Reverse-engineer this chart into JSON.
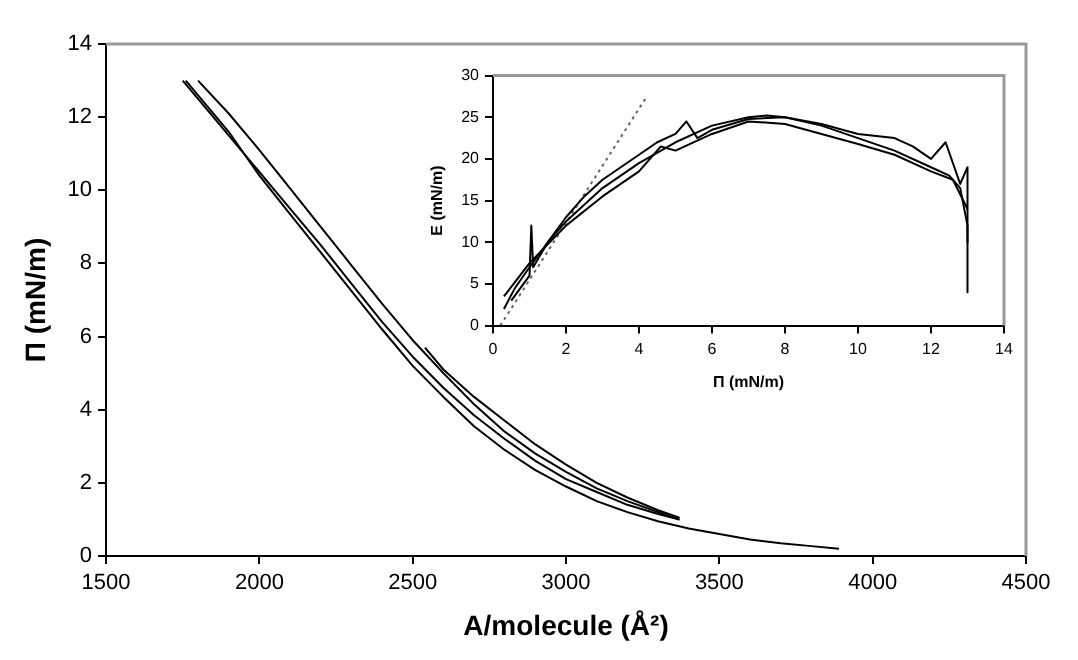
{
  "chart_data": [
    {
      "type": "line",
      "xlabel": "A/molecule (Å²)",
      "ylabel": "Π (mN/m)",
      "xlim": [
        1500,
        4500
      ],
      "xticks": [
        1500,
        2000,
        2500,
        3000,
        3500,
        4000,
        4500
      ],
      "ylim": [
        0,
        14
      ],
      "yticks": [
        0,
        2,
        4,
        6,
        8,
        10,
        12,
        14
      ],
      "grid": false,
      "legend": false,
      "marker": "none",
      "series": [
        {
          "color": "#000000",
          "x": [
            1800,
            1900,
            2000,
            2100,
            2200,
            2300,
            2400,
            2500,
            2600,
            2700,
            2800,
            2900,
            3000,
            3100,
            3200,
            3300,
            3370
          ],
          "values": [
            13,
            12.1,
            11.1,
            10.05,
            9.0,
            7.95,
            6.9,
            5.9,
            5.0,
            4.15,
            3.4,
            2.8,
            2.3,
            1.85,
            1.5,
            1.2,
            1.0
          ]
        },
        {
          "color": "#000000",
          "x": [
            1750,
            1850,
            2000,
            2100,
            2200,
            2300,
            2400,
            2500,
            2600,
            2700,
            2800,
            2900,
            3000,
            3100,
            3200,
            3300,
            3370
          ],
          "values": [
            13,
            12.0,
            10.5,
            9.5,
            8.5,
            7.45,
            6.4,
            5.45,
            4.6,
            3.85,
            3.2,
            2.6,
            2.1,
            1.75,
            1.4,
            1.15,
            1.0
          ]
        },
        {
          "color": "#000000",
          "x": [
            1760,
            1900,
            2000,
            2100,
            2200,
            2300,
            2400,
            2500,
            2600,
            2700,
            2800,
            2900,
            3000,
            3100,
            3200,
            3300,
            3400,
            3500,
            3600,
            3700,
            3800,
            3890
          ],
          "values": [
            13,
            11.6,
            10.4,
            9.35,
            8.3,
            7.25,
            6.2,
            5.2,
            4.35,
            3.55,
            2.9,
            2.35,
            1.9,
            1.5,
            1.2,
            0.95,
            0.75,
            0.6,
            0.45,
            0.35,
            0.27,
            0.2
          ]
        },
        {
          "color": "#000000",
          "x": [
            2540,
            2600,
            2700,
            2800,
            2900,
            3000,
            3100,
            3200,
            3300,
            3370
          ],
          "values": [
            5.7,
            5.1,
            4.35,
            3.7,
            3.05,
            2.5,
            2.0,
            1.6,
            1.25,
            1.05
          ]
        }
      ]
    },
    {
      "type": "line",
      "xlabel": "Π (mN/m)",
      "ylabel": "E (mN/m)",
      "xlim": [
        0,
        14
      ],
      "xticks": [
        0,
        2,
        4,
        6,
        8,
        10,
        12,
        14
      ],
      "ylim": [
        0,
        30
      ],
      "yticks": [
        0,
        5,
        10,
        15,
        20,
        25,
        30
      ],
      "grid": false,
      "legend": false,
      "marker": "none",
      "series": [
        {
          "color": "#000000",
          "x": [
            0.3,
            0.6,
            1,
            1.5,
            2,
            2.5,
            3,
            3.5,
            4,
            5,
            6,
            7,
            7.5,
            8,
            9,
            10,
            11,
            12,
            12.5,
            12.8,
            13,
            13
          ],
          "values": [
            2,
            4.5,
            7,
            10,
            12.5,
            14.5,
            16.5,
            18,
            19.5,
            22,
            24,
            25,
            25.2,
            25,
            24,
            22.5,
            21,
            19,
            18,
            16.5,
            12,
            4
          ]
        },
        {
          "color": "#000000",
          "x": [
            0.5,
            1,
            1.05,
            1.1,
            1.5,
            2,
            2.5,
            3,
            3.5,
            4,
            4.5,
            5,
            5.3,
            5.6,
            6,
            7,
            8,
            9,
            10,
            11,
            11.5,
            12,
            12.4,
            12.8,
            13,
            13
          ],
          "values": [
            3,
            6,
            12,
            7,
            10,
            13,
            15.5,
            17.5,
            19,
            20.5,
            22,
            23,
            24.5,
            22.5,
            23.5,
            24.8,
            25,
            24.2,
            23,
            22.5,
            21.5,
            20,
            22,
            17,
            19,
            10
          ]
        },
        {
          "color": "#000000",
          "x": [
            0.3,
            1,
            2,
            3,
            4,
            4.6,
            5,
            6,
            7,
            8,
            9,
            10,
            11,
            12,
            12.6,
            13
          ],
          "values": [
            3.5,
            7.5,
            12,
            15.5,
            18.5,
            21.5,
            21,
            23,
            24.5,
            24.2,
            23,
            21.8,
            20.5,
            18.5,
            17.5,
            14
          ]
        },
        {
          "color": "#666666",
          "line_style": "dotted",
          "x": [
            0.2,
            4.2
          ],
          "values": [
            0,
            27.4
          ]
        }
      ]
    }
  ]
}
